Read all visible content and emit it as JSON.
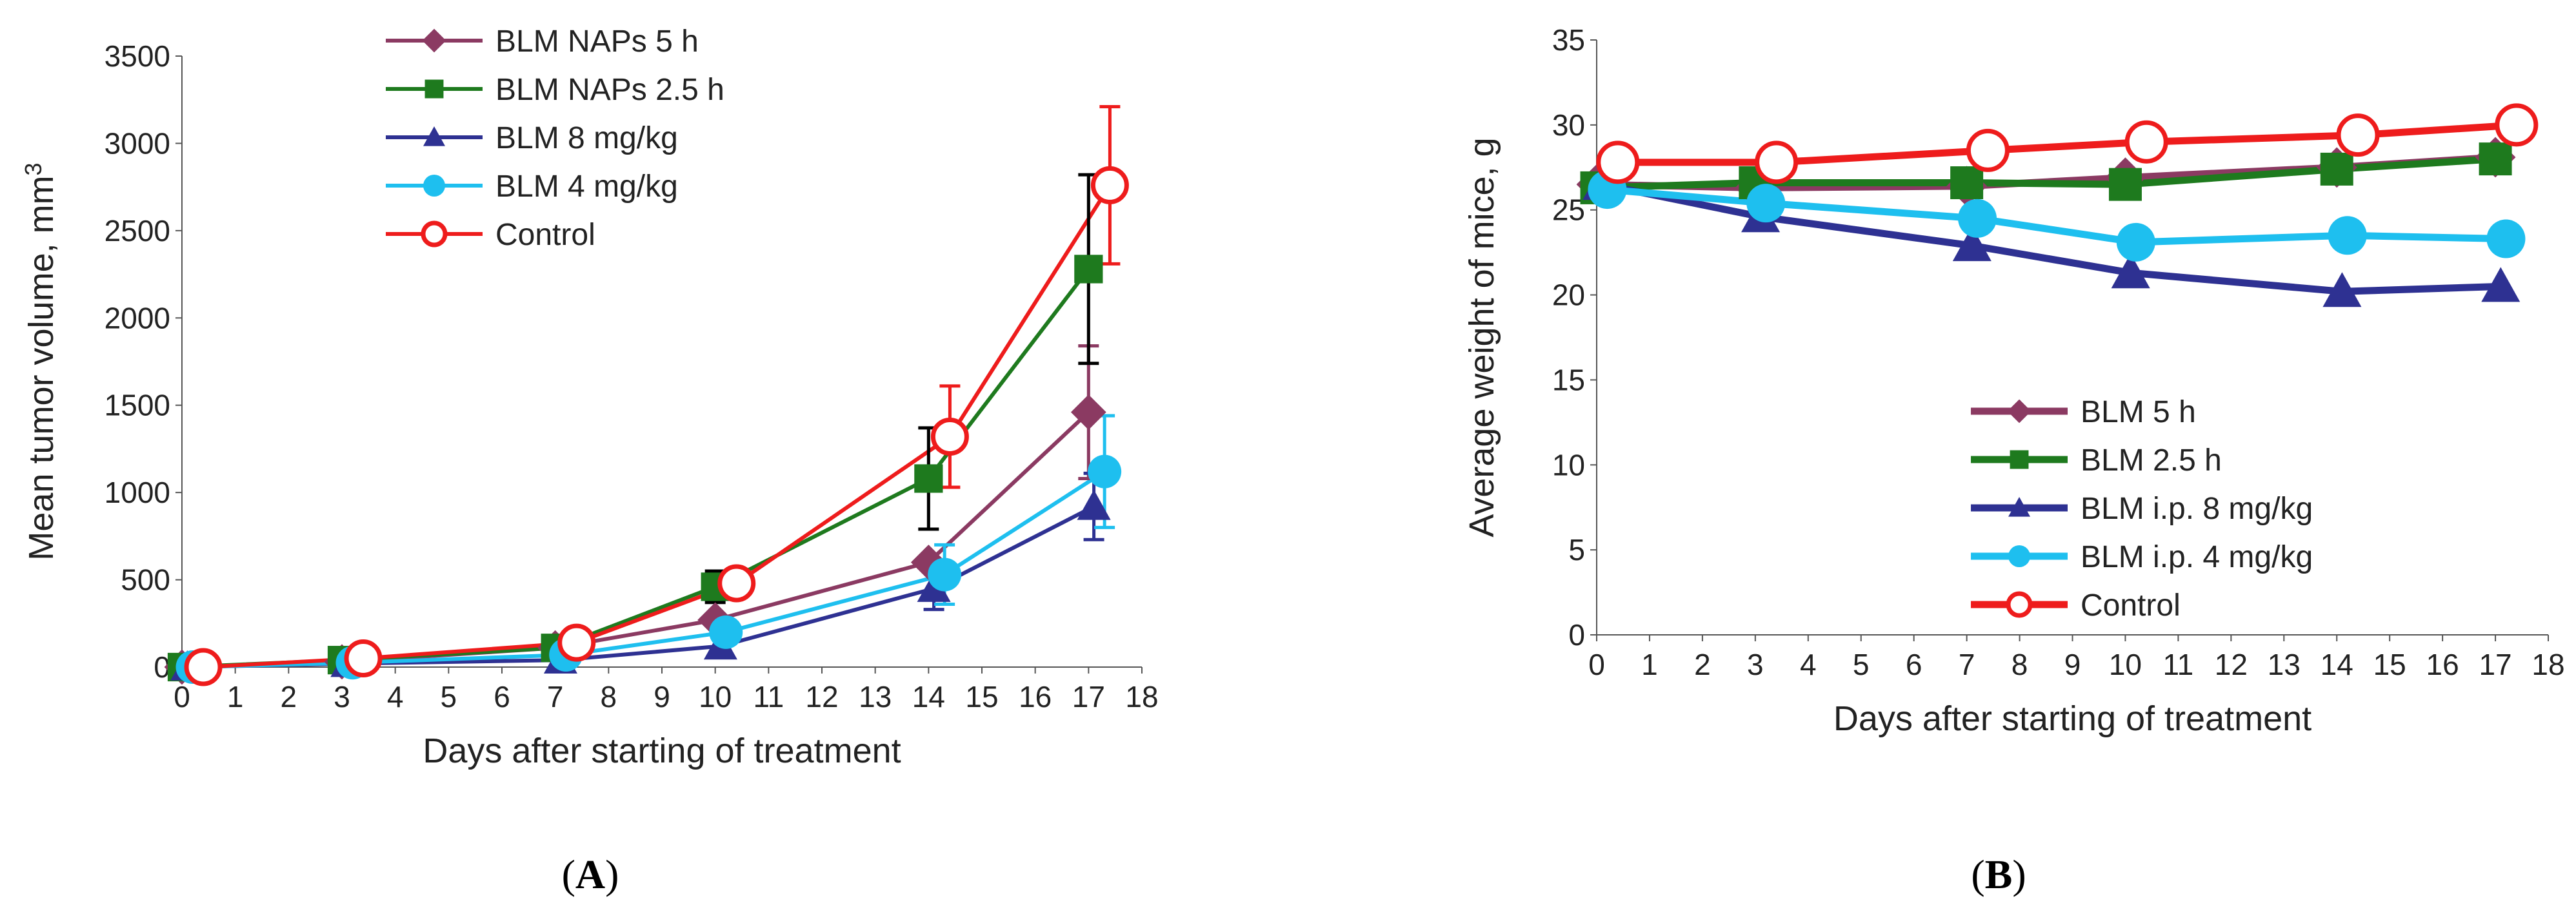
{
  "chart_data": [
    {
      "type": "line",
      "panel": "A",
      "xlabel": "Days after starting of treatment",
      "ylabel": "Mean tumor volume,  mm",
      "ylabel_sup": "3",
      "xlim": [
        0,
        18
      ],
      "ylim": [
        0,
        3500
      ],
      "xticks": [
        0,
        1,
        2,
        3,
        4,
        5,
        6,
        7,
        8,
        9,
        10,
        11,
        12,
        13,
        14,
        15,
        16,
        17,
        18
      ],
      "yticks": [
        0,
        500,
        1000,
        1500,
        2000,
        2500,
        3000,
        3500
      ],
      "legend_position": "top-center",
      "series": [
        {
          "name": "BLM NAPs 5 h",
          "color": "#8B3A62",
          "marker": "diamond",
          "x": [
            0,
            3,
            7,
            10,
            14,
            17
          ],
          "y": [
            0,
            30,
            110,
            270,
            600,
            1460
          ],
          "err": [
            0,
            0,
            0,
            0,
            0,
            380
          ]
        },
        {
          "name": "BLM NAPs 2.5 h",
          "color": "#1E7A1E",
          "marker": "square",
          "x": [
            0,
            3,
            7,
            10,
            14,
            17
          ],
          "y": [
            0,
            40,
            110,
            460,
            1080,
            2280
          ],
          "err": [
            0,
            0,
            0,
            90,
            290,
            540
          ]
        },
        {
          "name": "BLM 8 mg/kg",
          "color": "#2E3192",
          "marker": "triangle",
          "x": [
            0.1,
            3.1,
            7.1,
            10.1,
            14.1,
            17.1
          ],
          "y": [
            0,
            20,
            40,
            120,
            450,
            920
          ],
          "err": [
            0,
            0,
            0,
            0,
            120,
            190
          ]
        },
        {
          "name": "BLM 4 mg/kg",
          "color": "#1EBFEF",
          "marker": "circle",
          "x": [
            0.2,
            3.2,
            7.2,
            10.2,
            14.3,
            17.3
          ],
          "y": [
            0,
            25,
            70,
            200,
            530,
            1120
          ],
          "err": [
            0,
            0,
            0,
            0,
            170,
            320
          ]
        },
        {
          "name": "Control",
          "color": "#EE1C1C",
          "marker": "open-circle",
          "x": [
            0.4,
            3.4,
            7.4,
            10.4,
            14.4,
            17.4
          ],
          "y": [
            0,
            50,
            140,
            480,
            1320,
            2760
          ],
          "err": [
            0,
            0,
            0,
            0,
            290,
            450
          ]
        }
      ]
    },
    {
      "type": "line",
      "panel": "B",
      "xlabel": "Days after  starting  of treatment",
      "ylabel": "Average  weight  of mice,  g",
      "xlim": [
        0,
        18
      ],
      "ylim": [
        0,
        35
      ],
      "xticks": [
        0,
        1,
        2,
        3,
        4,
        5,
        6,
        7,
        8,
        9,
        10,
        11,
        12,
        13,
        14,
        15,
        16,
        17,
        18
      ],
      "yticks": [
        0,
        5,
        10,
        15,
        20,
        25,
        30,
        35
      ],
      "legend_position": "center",
      "series": [
        {
          "name": "BLM 5 h",
          "color": "#8B3A62",
          "marker": "diamond",
          "x": [
            0,
            3,
            7,
            10,
            14,
            17
          ],
          "y": [
            26.5,
            26.3,
            26.4,
            26.9,
            27.5,
            28.1
          ]
        },
        {
          "name": "BLM 2.5 h",
          "color": "#1E7A1E",
          "marker": "square",
          "x": [
            0,
            3,
            7,
            10,
            14,
            17
          ],
          "y": [
            26.3,
            26.6,
            26.6,
            26.5,
            27.4,
            28.0
          ]
        },
        {
          "name": "BLM i.p. 8 mg/kg",
          "color": "#2E3192",
          "marker": "triangle",
          "x": [
            0.1,
            3.1,
            7.1,
            10.1,
            14.1,
            17.1
          ],
          "y": [
            26.5,
            24.6,
            22.9,
            21.3,
            20.2,
            20.5
          ]
        },
        {
          "name": "BLM i.p. 4 mg/kg",
          "color": "#1EBFEF",
          "marker": "circle",
          "x": [
            0.2,
            3.2,
            7.2,
            10.2,
            14.2,
            17.2
          ],
          "y": [
            26.2,
            25.4,
            24.5,
            23.1,
            23.5,
            23.3
          ]
        },
        {
          "name": "Control",
          "color": "#EE1C1C",
          "marker": "open-circle",
          "x": [
            0.4,
            3.4,
            7.4,
            10.4,
            14.4,
            17.4
          ],
          "y": [
            27.8,
            27.8,
            28.5,
            29.0,
            29.4,
            30.0
          ]
        }
      ]
    }
  ],
  "panel_labels": {
    "a_open": "(",
    "a_letter": "A",
    "a_close": ")",
    "b_open": "(",
    "b_letter": "B",
    "b_close": ")"
  }
}
